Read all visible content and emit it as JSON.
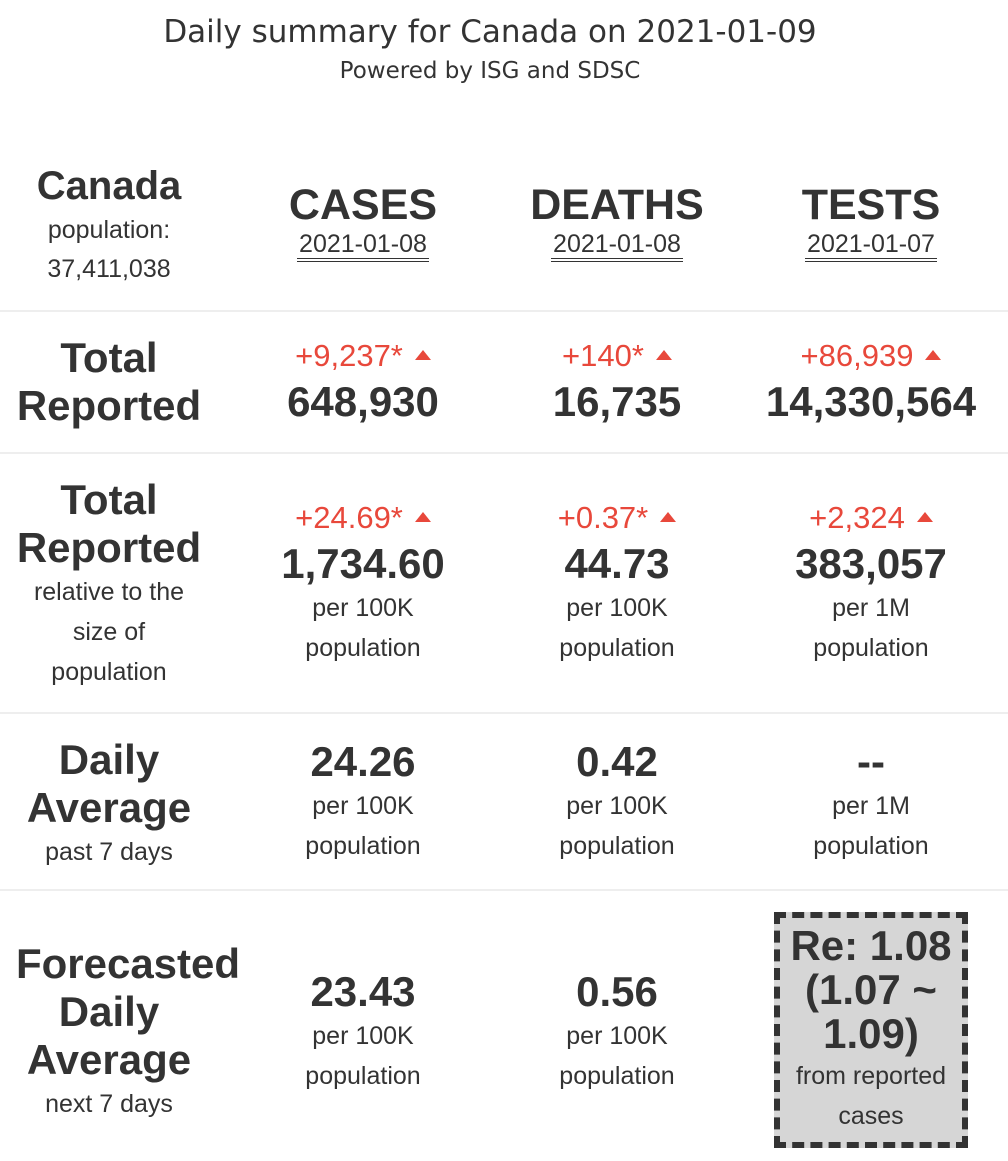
{
  "title": "Daily summary for Canada on 2021-01-09",
  "subtitle": "Powered by ISG and SDSC",
  "region": {
    "name": "Canada",
    "population_label": "population:",
    "population_value": "37,411,038"
  },
  "columns": [
    {
      "name": "CASES",
      "date": "2021-01-08"
    },
    {
      "name": "DEATHS",
      "date": "2021-01-08"
    },
    {
      "name": "TESTS",
      "date": "2021-01-07"
    }
  ],
  "total_reported": {
    "label_line1": "Total",
    "label_line2": "Reported",
    "cases": {
      "delta": "+9,237*",
      "value": "648,930"
    },
    "deaths": {
      "delta": "+140*",
      "value": "16,735"
    },
    "tests": {
      "delta": "+86,939",
      "value": "14,330,564"
    }
  },
  "relative": {
    "label_line1": "Total",
    "label_line2": "Reported",
    "label_sub1": "relative to the",
    "label_sub2": "size of",
    "label_sub3": "population",
    "cases": {
      "delta": "+24.69*",
      "value": "1,734.60",
      "unit1": "per 100K",
      "unit2": "population"
    },
    "deaths": {
      "delta": "+0.37*",
      "value": "44.73",
      "unit1": "per 100K",
      "unit2": "population"
    },
    "tests": {
      "delta": "+2,324",
      "value": "383,057",
      "unit1": "per 1M",
      "unit2": "population"
    }
  },
  "daily_average": {
    "label_line1": "Daily",
    "label_line2": "Average",
    "label_sub": "past 7 days",
    "cases": {
      "value": "24.26",
      "unit1": "per 100K",
      "unit2": "population"
    },
    "deaths": {
      "value": "0.42",
      "unit1": "per 100K",
      "unit2": "population"
    },
    "tests": {
      "value": "--",
      "unit1": "per 1M",
      "unit2": "population"
    }
  },
  "forecast": {
    "label_line1": "Forecasted",
    "label_line2": "Daily",
    "label_line3": "Average",
    "label_sub": "next 7 days",
    "cases": {
      "value": "23.43",
      "unit1": "per 100K",
      "unit2": "population"
    },
    "deaths": {
      "value": "0.56",
      "unit1": "per 100K",
      "unit2": "population"
    },
    "re": {
      "line1": "Re: 1.08",
      "line2": "(1.07 ~",
      "line3": "1.09)",
      "sub1": "from reported",
      "sub2": "cases"
    }
  },
  "colors": {
    "increase": "#e8483b",
    "text": "#333333",
    "re_box": "#d6d6d6"
  },
  "icons": {
    "increase": "triangle-up-icon"
  }
}
